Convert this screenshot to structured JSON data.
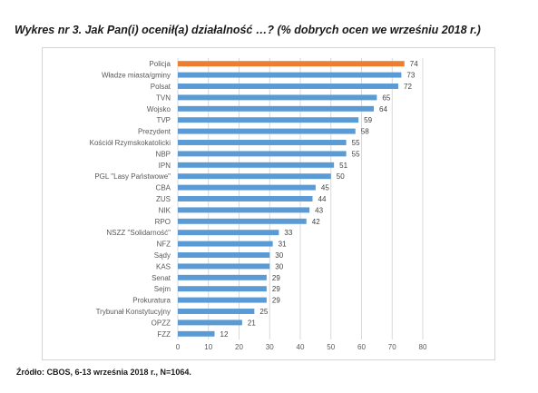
{
  "title": "Wykres nr 3. Jak Pan(i) ocenił(a) działalność …? (% dobrych ocen we wrześniu 2018 r.)",
  "source": "Źródło: CBOS, 6-13 września 2018 r., N=1064.",
  "colors": {
    "highlight": "#ED7D31",
    "bar": "#5B9BD5",
    "grid": "#D9D9D9"
  },
  "chart_data": {
    "type": "bar",
    "orientation": "horizontal",
    "title": "Wykres nr 3. Jak Pan(i) ocenił(a) działalność …? (% dobrych ocen we wrześniu 2018 r.)",
    "categories": [
      "Policja",
      "Władze miasta/gminy",
      "Polsat",
      "TVN",
      "Wojsko",
      "TVP",
      "Prezydent",
      "Kościół Rzymskokatolicki",
      "NBP",
      "IPN",
      "PGL \"Lasy Państwowe\"",
      "CBA",
      "ZUS",
      "NIK",
      "RPO",
      "NSZZ \"Solidarność\"",
      "NFZ",
      "Sądy",
      "KAS",
      "Senat",
      "Sejm",
      "Prokuratura",
      "Trybunał Konstytucyjny",
      "OPZZ",
      "FZZ"
    ],
    "values": [
      74,
      73,
      72,
      65,
      64,
      59,
      58,
      55,
      55,
      51,
      50,
      45,
      44,
      43,
      42,
      33,
      31,
      30,
      30,
      29,
      29,
      29,
      25,
      21,
      12
    ],
    "highlight_index": 0,
    "xlim": [
      0,
      80
    ],
    "xticks": [
      0,
      10,
      20,
      30,
      40,
      50,
      60,
      70,
      80
    ],
    "grid": "vertical",
    "data_labels": true,
    "xlabel": "",
    "ylabel": ""
  }
}
